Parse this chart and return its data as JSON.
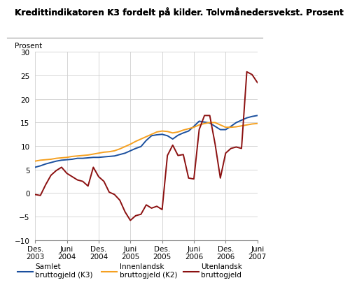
{
  "title_line1": "Kredittindikatoren K3 fordelt på kilder. Tolvmånedersvekst. Prosent",
  "ylabel": "Prosent",
  "ylim": [
    -10,
    30
  ],
  "yticks": [
    -10,
    -5,
    0,
    5,
    10,
    15,
    20,
    25,
    30
  ],
  "bg_color": "#ffffff",
  "grid_color": "#d0d0d0",
  "line_colors": {
    "samlet": "#1a4f9e",
    "innenlandsk": "#f5a020",
    "utenlandsk": "#8b1010"
  },
  "x_tick_labels": [
    "Des.\n2003",
    "Juni\n2004",
    "Des.\n2004",
    "Juni\n2005",
    "Des.\n2005",
    "Juni\n2006",
    "Des.\n2006",
    "Juni\n2007"
  ],
  "x_tick_positions": [
    0,
    6,
    12,
    18,
    24,
    30,
    36,
    42
  ],
  "samlet": [
    5.5,
    5.8,
    6.2,
    6.5,
    6.8,
    7.0,
    7.1,
    7.2,
    7.4,
    7.4,
    7.5,
    7.6,
    7.6,
    7.7,
    7.8,
    7.9,
    8.2,
    8.5,
    9.0,
    9.5,
    9.9,
    11.2,
    12.2,
    12.4,
    12.5,
    12.2,
    11.5,
    12.3,
    12.8,
    13.2,
    14.2,
    15.3,
    15.1,
    14.9,
    14.2,
    13.5,
    13.5,
    14.2,
    15.0,
    15.5,
    16.0,
    16.3,
    16.5
  ],
  "innenlandsk": [
    6.8,
    7.0,
    7.1,
    7.2,
    7.4,
    7.5,
    7.6,
    7.8,
    7.9,
    8.0,
    8.1,
    8.3,
    8.5,
    8.7,
    8.8,
    9.0,
    9.4,
    9.9,
    10.4,
    11.0,
    11.5,
    12.0,
    12.5,
    13.0,
    13.2,
    13.1,
    12.8,
    13.0,
    13.4,
    13.7,
    14.0,
    14.5,
    14.8,
    15.0,
    15.0,
    14.5,
    14.0,
    14.0,
    14.1,
    14.3,
    14.5,
    14.7,
    14.8
  ],
  "utenlandsk": [
    -0.3,
    -0.5,
    1.8,
    3.8,
    4.8,
    5.5,
    4.2,
    3.5,
    2.8,
    2.5,
    1.5,
    5.5,
    3.5,
    2.5,
    0.2,
    -0.3,
    -1.5,
    -4.0,
    -5.8,
    -4.8,
    -4.5,
    -2.5,
    -3.2,
    -2.8,
    -3.5,
    8.0,
    10.2,
    8.0,
    8.2,
    3.2,
    3.0,
    13.5,
    16.5,
    16.5,
    10.5,
    3.2,
    8.5,
    9.5,
    9.8,
    9.5,
    25.8,
    25.2,
    23.5
  ],
  "legend_labels": [
    "Samlet\nbruttogjeld (K3)",
    "Innenlandsk\nbruttogjeld (K2)",
    "Utenlandsk\nbruttogjeld"
  ]
}
